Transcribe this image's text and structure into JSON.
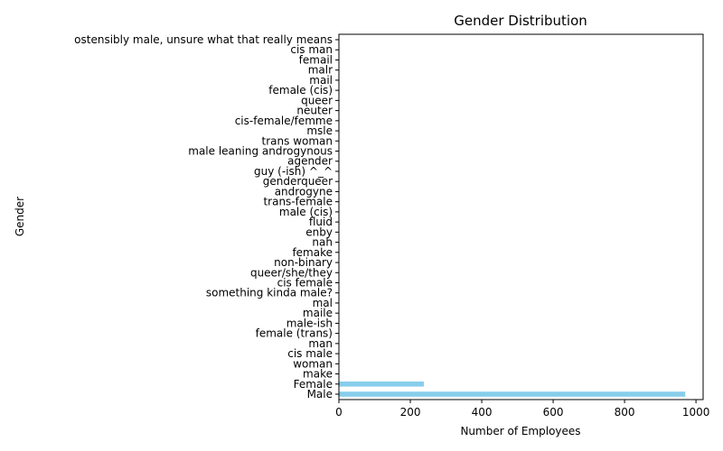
{
  "chart_data": {
    "type": "bar",
    "orientation": "horizontal",
    "title": "Gender Distribution",
    "xlabel": "Number of Employees",
    "ylabel": "Gender",
    "xlim": [
      0,
      1020
    ],
    "xticks": [
      0,
      200,
      400,
      600,
      800,
      1000
    ],
    "grid": false,
    "bar_color": "#87ceeb",
    "categories": [
      "Male",
      "Female",
      "make",
      "woman",
      "cis male",
      "man",
      "female (trans)",
      "male-ish",
      "maile",
      "mal",
      "something kinda male?",
      "cis female",
      "queer/she/they",
      "non-binary",
      "femake",
      "nah",
      "enby",
      "fluid",
      "male (cis)",
      "trans-female",
      "androgyne",
      "genderqueer",
      "guy (-ish) ^_^",
      "agender",
      "male leaning androgynous",
      "trans woman",
      "msle",
      "cis-female/femme",
      "neuter",
      "queer",
      "female (cis)",
      "mail",
      "malr",
      "femail",
      "cis man",
      "ostensibly male, unsure what that really means"
    ],
    "values": [
      970,
      238,
      1,
      1,
      1,
      1,
      1,
      1,
      1,
      1,
      1,
      1,
      1,
      1,
      1,
      1,
      1,
      1,
      1,
      1,
      1,
      1,
      1,
      1,
      1,
      1,
      1,
      1,
      1,
      1,
      1,
      1,
      1,
      1,
      1,
      1
    ]
  }
}
